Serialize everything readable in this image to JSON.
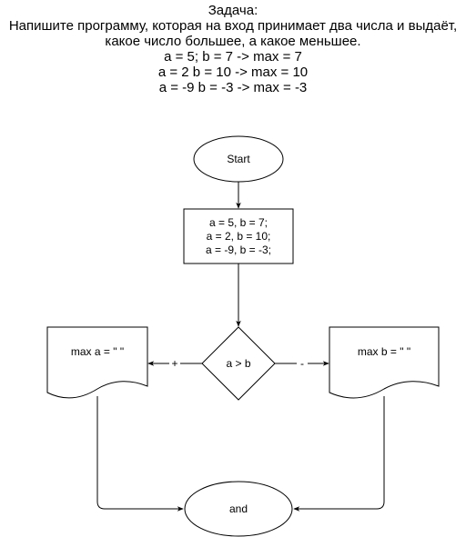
{
  "task": {
    "heading": "Задача:",
    "line1": "Напишите программу, которая на вход принимает два числа и выдаёт,",
    "line2": "какое число большее, а какое меньшее.",
    "example1": "a = 5; b = 7 -> max = 7",
    "example2": "a = 2 b = 10 -> max = 10",
    "example3": "a = -9 b = -3 -> max = -3"
  },
  "flowchart": {
    "start": "Start",
    "input_lines": [
      "a = 5, b = 7;",
      "a = 2, b = 10;",
      "a = -9, b = -3;"
    ],
    "decision": "a > b",
    "yes_label": "+",
    "no_label": "-",
    "left_output": "max a = \" \"",
    "right_output": "max b = \" \"",
    "end": "and"
  },
  "colors": {
    "stroke": "#000000",
    "fill": "#ffffff"
  }
}
